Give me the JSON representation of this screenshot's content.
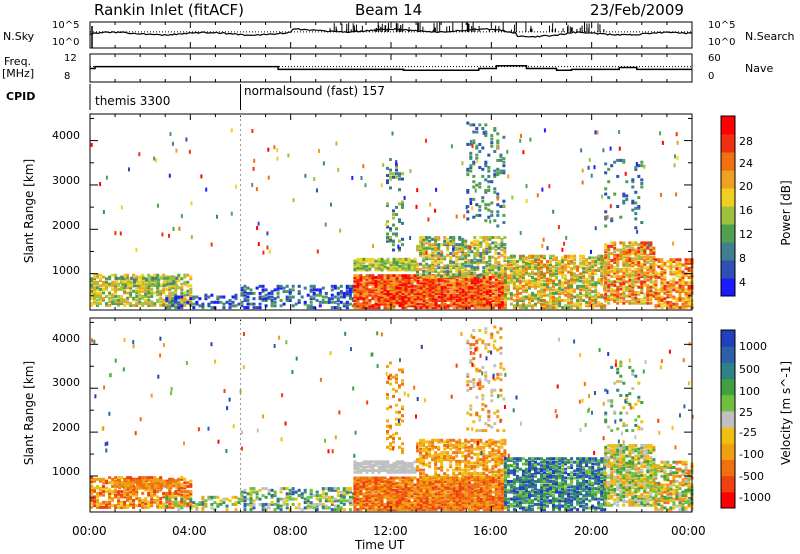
{
  "header": {
    "station_title": "Rankin Inlet (fitACF)",
    "beam": "Beam 14",
    "date": "23/Feb/2009"
  },
  "noise_panel": {
    "left_label": "N.Sky",
    "right_label": "N.Search",
    "left_ticks": [
      "10^5",
      "10^0"
    ],
    "right_ticks": [
      "10^5",
      "10^0"
    ]
  },
  "freq_panel": {
    "left_label_1": "Freq.",
    "left_label_2": "[MHz]",
    "left_ticks": [
      "12",
      "8"
    ],
    "right_label": "Nave",
    "right_ticks": [
      "60",
      "0"
    ]
  },
  "cpid_panel": {
    "label": "CPID",
    "modes": [
      {
        "name": "themis 3300",
        "start_hour": 0,
        "end_hour": 6
      },
      {
        "name": "normalsound (fast) 157",
        "start_hour": 6,
        "end_hour": 24
      }
    ]
  },
  "x_axis": {
    "label": "Time UT",
    "ticks": [
      "00:00",
      "04:00",
      "08:00",
      "12:00",
      "16:00",
      "20:00",
      "00:00"
    ],
    "range_hours": [
      0,
      24
    ]
  },
  "chart_data": [
    {
      "type": "heatmap",
      "ylabel": "Slant Range [km]",
      "yticks": [
        "1000",
        "2000",
        "3000",
        "4000"
      ],
      "ylim": [
        180,
        4600
      ],
      "colorbar": {
        "label": "Power [dB]",
        "ticks": [
          "4",
          "8",
          "12",
          "16",
          "20",
          "24",
          "28"
        ],
        "range": [
          0,
          32
        ]
      }
    },
    {
      "type": "heatmap",
      "ylabel": "Slant Range [km]",
      "yticks": [
        "1000",
        "2000",
        "3000",
        "4000"
      ],
      "ylim": [
        180,
        4600
      ],
      "colorbar": {
        "label": "Velocity [m s^-1]",
        "ticks": [
          "1000",
          "500",
          "100",
          "25",
          "-25",
          "-100",
          "-500",
          "-1000"
        ]
      }
    }
  ],
  "colors": {
    "power_scale": [
      "#1a1aff",
      "#2f4fb4",
      "#3f7f8f",
      "#50a050",
      "#a0c040",
      "#f0d020",
      "#f0a020",
      "#f07010",
      "#f03010",
      "#ff0000"
    ],
    "velocity_scale": [
      "#2040c0",
      "#2f5fa8",
      "#30808a",
      "#40a040",
      "#70c040",
      "#c0c0c0",
      "#f0c010",
      "#f0a010",
      "#f07010",
      "#f04010",
      "#ff0000"
    ]
  }
}
